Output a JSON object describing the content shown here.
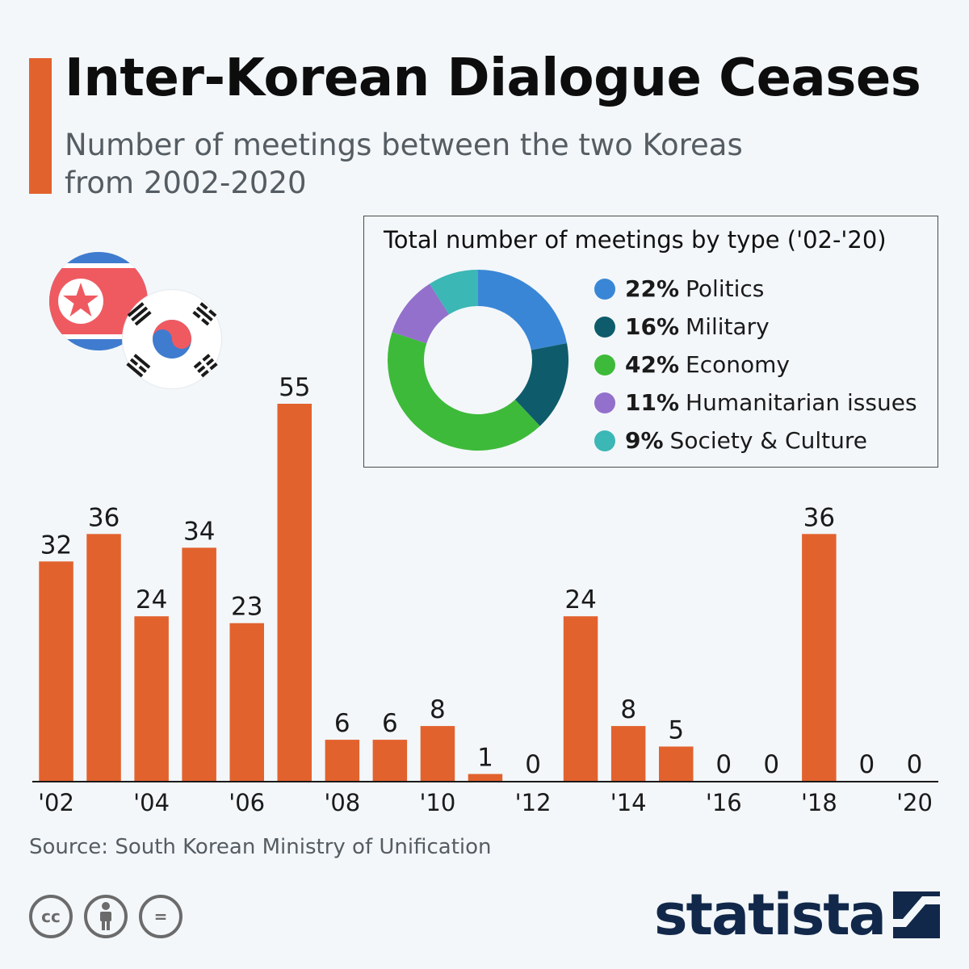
{
  "header": {
    "title": "Inter-Korean Dialogue Ceases",
    "subtitle_line1": "Number of meetings between the two Koreas",
    "subtitle_line2": "from 2002-2020"
  },
  "colors": {
    "accent": "#e2622e",
    "bar": "#e2622e",
    "logo": "#12284a"
  },
  "chart_data": [
    {
      "type": "bar",
      "title": "",
      "xlabel": "",
      "ylabel": "",
      "categories": [
        "2002",
        "2003",
        "2004",
        "2005",
        "2006",
        "2007",
        "2008",
        "2009",
        "2010",
        "2011",
        "2012",
        "2013",
        "2014",
        "2015",
        "2016",
        "2017",
        "2018",
        "2019",
        "2020"
      ],
      "values": [
        32,
        36,
        24,
        34,
        23,
        55,
        6,
        6,
        8,
        1,
        0,
        24,
        8,
        5,
        0,
        0,
        36,
        0,
        0
      ],
      "tick_labels": [
        "'02",
        "",
        "'04",
        "",
        "'06",
        "",
        "'08",
        "",
        "'10",
        "",
        "'12",
        "",
        "'14",
        "",
        "'16",
        "",
        "'18",
        "",
        "'20"
      ],
      "data_labels": true,
      "ylim": [
        0,
        55
      ],
      "grid": false
    },
    {
      "type": "pie",
      "title": "Total number of meetings by type ('02-'20)",
      "donut": true,
      "legend_position": "right",
      "slices": [
        {
          "label": "Politics",
          "value": 22,
          "value_label": "22%",
          "color": "#3a86d6"
        },
        {
          "label": "Military",
          "value": 16,
          "value_label": "16%",
          "color": "#0e5c6b"
        },
        {
          "label": "Economy",
          "value": 42,
          "value_label": "42%",
          "color": "#3dba39"
        },
        {
          "label": "Humanitarian issues",
          "value": 11,
          "value_label": "11%",
          "color": "#9370cb"
        },
        {
          "label": "Society & Culture",
          "value": 9,
          "value_label": "9%",
          "color": "#3bb7b5"
        }
      ]
    }
  ],
  "illustration": {
    "icons": [
      "north-korea-flag-icon",
      "south-korea-flag-icon"
    ]
  },
  "footer": {
    "source": "Source: South Korean Ministry of Unification",
    "license_icons": [
      "cc-icon",
      "attribution-icon",
      "no-derivatives-icon"
    ],
    "license_cc_text": "cc",
    "license_nd_text": "=",
    "logo_text": "statista"
  }
}
